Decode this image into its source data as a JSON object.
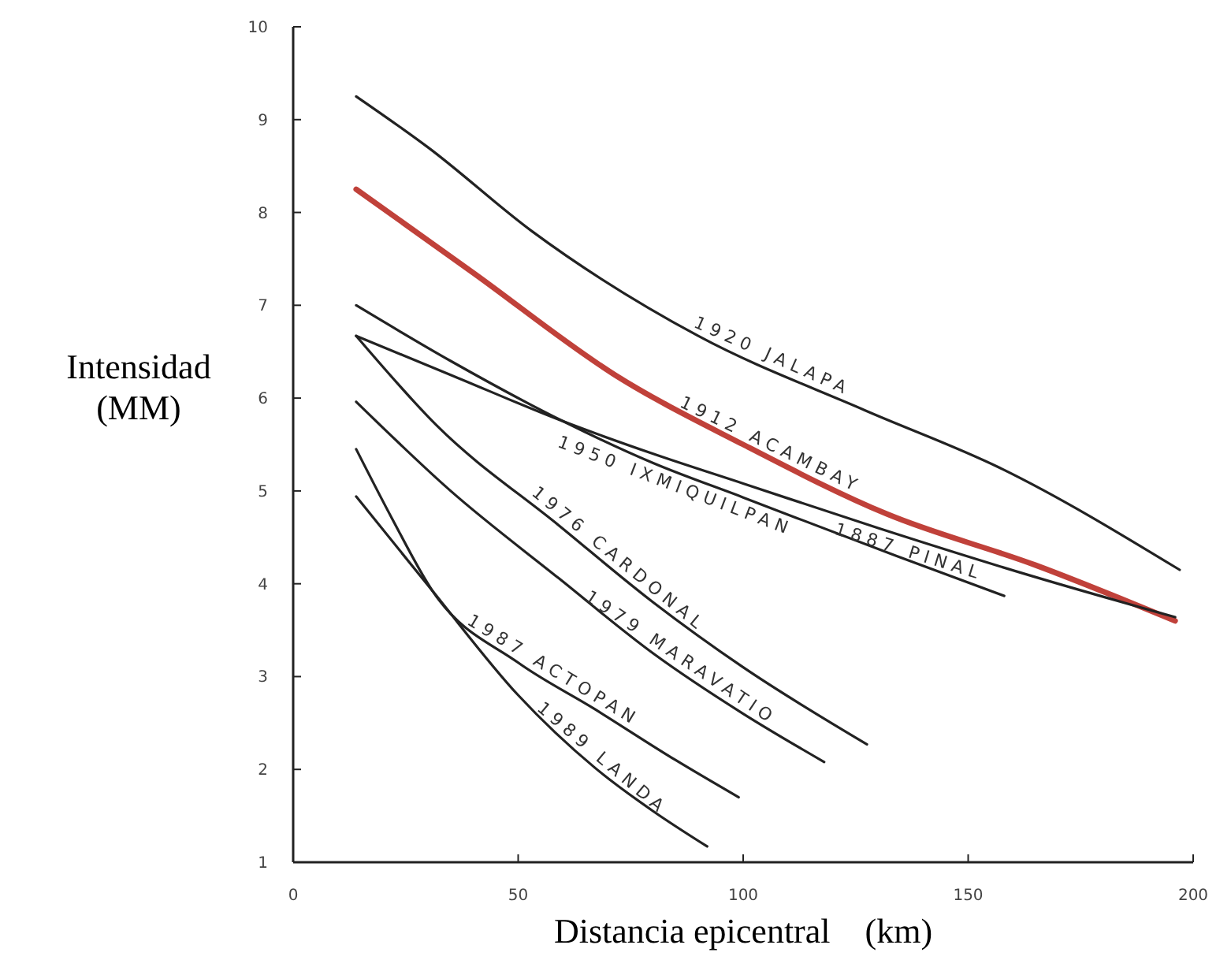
{
  "chart_data": {
    "type": "line",
    "xlabel": "Distancia epicentral    (km)",
    "ylabel": "Intensidad (MM)",
    "xlim": [
      0,
      200
    ],
    "ylim": [
      1,
      10
    ],
    "xticks": [
      0,
      50,
      100,
      150,
      200
    ],
    "yticks": [
      1,
      2,
      3,
      4,
      5,
      6,
      7,
      8,
      9,
      10
    ],
    "grid": false,
    "marker": "none",
    "line_style": "solid",
    "series": [
      {
        "name": "1920 JALAPA",
        "color": "#222222",
        "x": [
          14,
          30,
          53,
          90,
          127,
          157,
          197
        ],
        "values": [
          9.25,
          8.7,
          7.8,
          6.67,
          5.87,
          5.25,
          4.15
        ]
      },
      {
        "name": "1912 ACAMBAY",
        "color": "#c0413a",
        "x": [
          14,
          40,
          71.5,
          100,
          132,
          165,
          196
        ],
        "values": [
          8.25,
          7.35,
          6.25,
          5.5,
          4.75,
          4.2,
          3.6
        ]
      },
      {
        "name": "1887 PINAL",
        "color": "#222222",
        "x": [
          14,
          35,
          60,
          80,
          100,
          130,
          163,
          196
        ],
        "values": [
          6.67,
          6.25,
          5.75,
          5.4,
          5.08,
          4.6,
          4.1,
          3.64
        ]
      },
      {
        "name": "1950 IXMIQUILPAN",
        "color": "#222222",
        "x": [
          14,
          35,
          60,
          80,
          100,
          134,
          158
        ],
        "values": [
          7.0,
          6.4,
          5.75,
          5.3,
          4.93,
          4.3,
          3.87
        ]
      },
      {
        "name": "1976 CARDONAL",
        "color": "#222222",
        "x": [
          14,
          32,
          59,
          80,
          100,
          127.5
        ],
        "values": [
          6.67,
          5.7,
          4.63,
          3.8,
          3.1,
          2.27
        ]
      },
      {
        "name": "1979 MARAVATIO",
        "color": "#222222",
        "x": [
          14,
          35,
          59,
          80,
          100,
          118
        ],
        "values": [
          5.96,
          5.0,
          4.06,
          3.25,
          2.6,
          2.08
        ]
      },
      {
        "name": "1987 ACTOPAN",
        "color": "#222222",
        "x": [
          14,
          22,
          31,
          50,
          67,
          85,
          99
        ],
        "values": [
          5.45,
          4.7,
          3.92,
          3.15,
          2.65,
          2.1,
          1.7
        ]
      },
      {
        "name": "1989 LANDA",
        "color": "#222222",
        "x": [
          14,
          31,
          50,
          67,
          80,
          92
        ],
        "values": [
          4.94,
          3.92,
          2.8,
          2.02,
          1.55,
          1.17
        ]
      }
    ]
  }
}
